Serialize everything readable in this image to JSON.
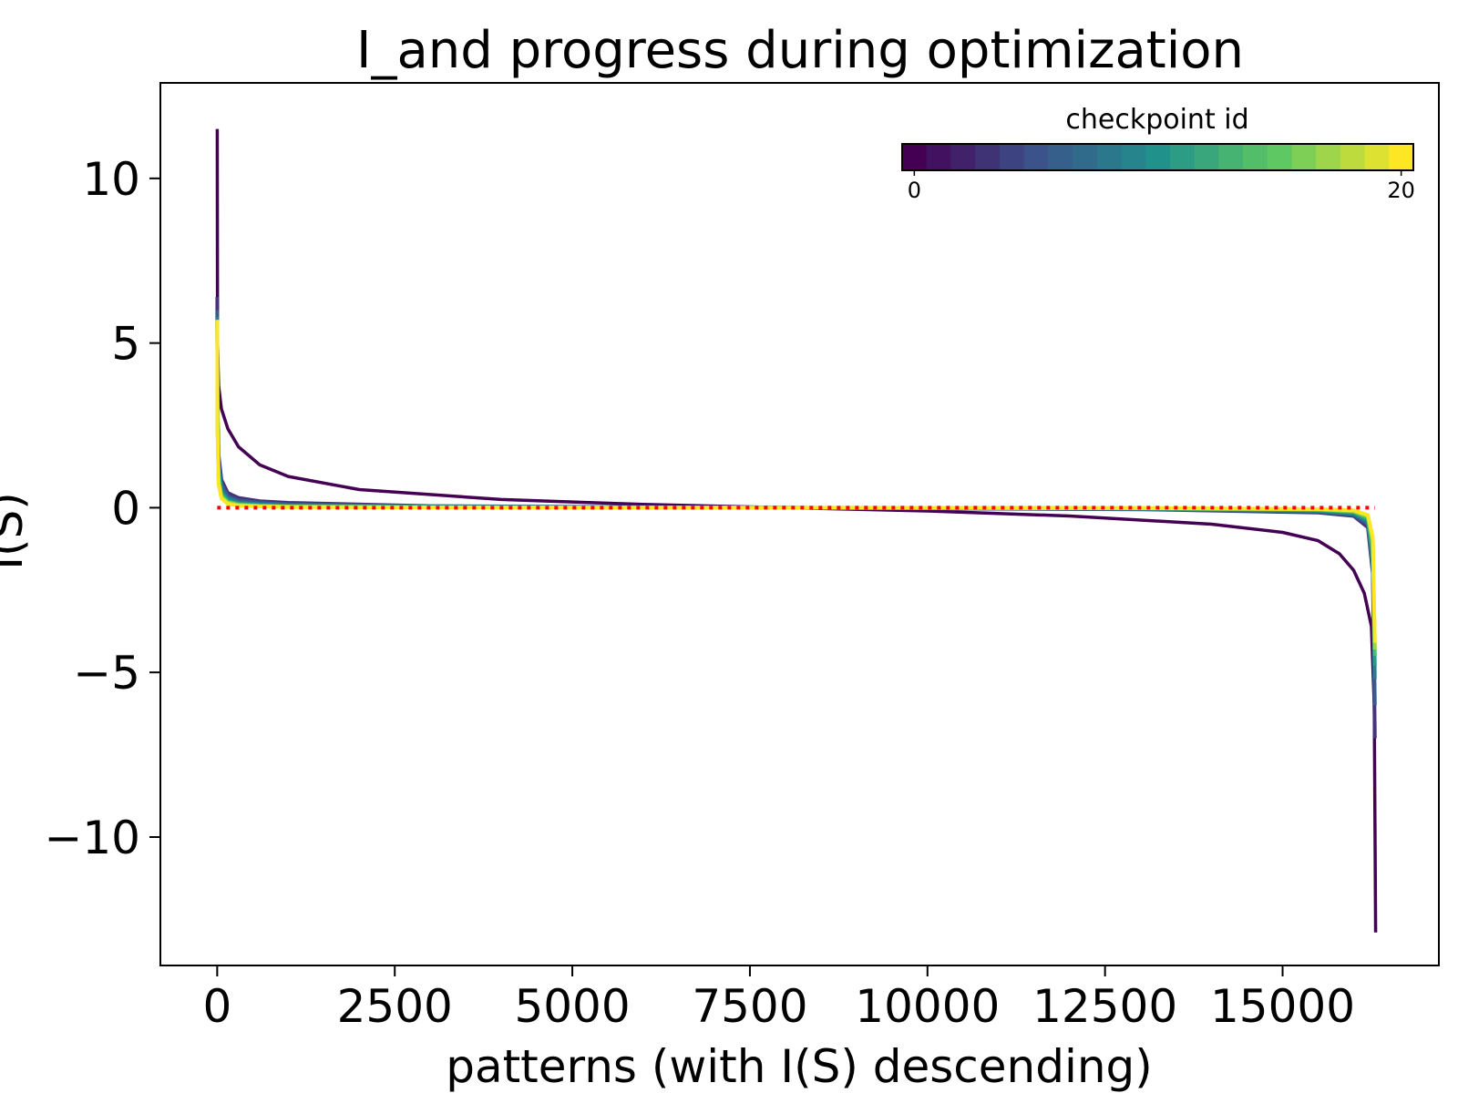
{
  "chart_data": {
    "type": "line",
    "title": "I_and progress during optimization",
    "xlabel": "patterns (with I(S) descending)",
    "ylabel": "I(S)",
    "xlim": [
      -800,
      17200
    ],
    "ylim": [
      -13.9,
      12.9
    ],
    "xticks": [
      0,
      2500,
      5000,
      7500,
      10000,
      12500,
      15000
    ],
    "xtick_labels": [
      "0",
      "2500",
      "5000",
      "7500",
      "10000",
      "12500",
      "15000"
    ],
    "yticks": [
      -10,
      -5,
      0,
      5,
      10
    ],
    "ytick_labels": [
      "−10",
      "−5",
      "0",
      "5",
      "10"
    ],
    "grid": false,
    "colorbar": {
      "label": "checkpoint id",
      "range": [
        0,
        20
      ],
      "tick_values": [
        0,
        20
      ],
      "tick_labels": [
        "0",
        "20"
      ],
      "colormap": "viridis",
      "placement": "top-right",
      "steps": 21
    },
    "reference_line": {
      "style": "dotted",
      "color": "#ff0000",
      "y": 0,
      "x_start": 0,
      "x_end": 16300
    },
    "series": [
      {
        "color": "#440154",
        "x": [
          0,
          5,
          20,
          60,
          150,
          300,
          600,
          1000,
          2000,
          4000,
          6000,
          8000,
          10000,
          12000,
          14000,
          15000,
          15500,
          15800,
          16000,
          16150,
          16250,
          16290,
          16310
        ],
        "y": [
          11.5,
          5.0,
          3.7,
          3.0,
          2.4,
          1.85,
          1.3,
          0.95,
          0.55,
          0.25,
          0.1,
          0.0,
          -0.1,
          -0.25,
          -0.5,
          -0.75,
          -1.0,
          -1.4,
          -1.9,
          -2.6,
          -3.6,
          -6.0,
          -12.9
        ]
      },
      {
        "color": "#46327e",
        "x": [
          0,
          5,
          20,
          60,
          150,
          300,
          600,
          1000,
          3000,
          8000,
          13000,
          15500,
          16000,
          16200,
          16270,
          16300
        ],
        "y": [
          6.4,
          3.2,
          1.6,
          0.85,
          0.45,
          0.3,
          0.2,
          0.15,
          0.05,
          0.0,
          -0.05,
          -0.15,
          -0.25,
          -0.6,
          -2.0,
          -7.0
        ]
      },
      {
        "color": "#365c8d",
        "x": [
          0,
          5,
          20,
          60,
          150,
          300,
          600,
          1000,
          3000,
          8000,
          13000,
          15500,
          16000,
          16200,
          16270,
          16300
        ],
        "y": [
          6.0,
          3.0,
          1.4,
          0.7,
          0.35,
          0.22,
          0.15,
          0.1,
          0.04,
          0.0,
          -0.04,
          -0.12,
          -0.22,
          -0.5,
          -1.8,
          -6.0
        ]
      },
      {
        "color": "#277f8e",
        "x": [
          0,
          5,
          20,
          60,
          150,
          300,
          600,
          1000,
          3000,
          8000,
          13000,
          15500,
          16000,
          16200,
          16270,
          16300
        ],
        "y": [
          5.8,
          2.8,
          1.2,
          0.55,
          0.28,
          0.16,
          0.1,
          0.07,
          0.03,
          0.0,
          -0.03,
          -0.1,
          -0.18,
          -0.42,
          -1.6,
          -5.2
        ]
      },
      {
        "color": "#1fa187",
        "x": [
          0,
          5,
          20,
          60,
          150,
          300,
          600,
          1000,
          3000,
          8000,
          13000,
          15500,
          16000,
          16200,
          16270,
          16300
        ],
        "y": [
          5.7,
          2.6,
          1.0,
          0.45,
          0.22,
          0.12,
          0.08,
          0.05,
          0.02,
          0.0,
          -0.02,
          -0.08,
          -0.15,
          -0.36,
          -1.4,
          -4.8
        ]
      },
      {
        "color": "#4ac16d",
        "x": [
          0,
          5,
          20,
          60,
          150,
          300,
          600,
          1000,
          3000,
          8000,
          13000,
          15500,
          16000,
          16200,
          16270,
          16300
        ],
        "y": [
          5.7,
          2.5,
          0.9,
          0.38,
          0.18,
          0.1,
          0.06,
          0.04,
          0.02,
          0.0,
          -0.02,
          -0.06,
          -0.12,
          -0.3,
          -1.2,
          -4.5
        ]
      },
      {
        "color": "#a0da39",
        "x": [
          0,
          5,
          20,
          60,
          150,
          300,
          600,
          1000,
          3000,
          8000,
          13000,
          15500,
          16000,
          16200,
          16270,
          16300
        ],
        "y": [
          5.7,
          2.4,
          0.8,
          0.32,
          0.15,
          0.08,
          0.05,
          0.03,
          0.01,
          0.0,
          -0.01,
          -0.05,
          -0.1,
          -0.26,
          -1.0,
          -4.3
        ]
      },
      {
        "color": "#fde725",
        "x": [
          0,
          5,
          20,
          60,
          150,
          300,
          600,
          1000,
          3000,
          8000,
          13000,
          15500,
          16000,
          16200,
          16270,
          16300
        ],
        "y": [
          5.7,
          2.3,
          0.7,
          0.28,
          0.12,
          0.06,
          0.04,
          0.02,
          0.01,
          0.0,
          -0.01,
          -0.04,
          -0.08,
          -0.22,
          -0.9,
          -4.1
        ]
      }
    ]
  }
}
